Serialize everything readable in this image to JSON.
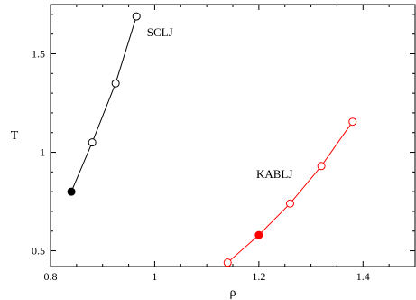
{
  "chart_data": {
    "type": "line",
    "xlabel": "ρ",
    "ylabel": "T",
    "xlim": [
      0.8,
      1.5
    ],
    "ylim": [
      0.42,
      1.75
    ],
    "x_ticks": [
      0.8,
      1.0,
      1.2,
      1.4
    ],
    "x_tick_labels": [
      "0.8",
      "1",
      "1.2",
      "1.4"
    ],
    "y_ticks": [
      0.5,
      1.0,
      1.5
    ],
    "y_tick_labels": [
      "0.5",
      "1",
      "1.5"
    ],
    "grid": false,
    "series": [
      {
        "name": "SCLJ",
        "color": "#000000",
        "marker": "open-circle",
        "points": [
          {
            "x": 0.84,
            "y": 0.8,
            "filled": true
          },
          {
            "x": 0.88,
            "y": 1.05,
            "filled": false
          },
          {
            "x": 0.925,
            "y": 1.35,
            "filled": false
          },
          {
            "x": 0.965,
            "y": 1.69,
            "filled": false
          }
        ]
      },
      {
        "name": "KABLJ",
        "color": "#ff0000",
        "marker": "open-circle",
        "points": [
          {
            "x": 1.14,
            "y": 0.44,
            "filled": false
          },
          {
            "x": 1.2,
            "y": 0.58,
            "filled": true
          },
          {
            "x": 1.26,
            "y": 0.74,
            "filled": false
          },
          {
            "x": 1.32,
            "y": 0.93,
            "filled": false
          },
          {
            "x": 1.38,
            "y": 1.155,
            "filled": false
          }
        ]
      }
    ],
    "annotations": [
      {
        "text": "SCLJ",
        "x": 0.985,
        "y": 1.59
      },
      {
        "text": "KABLJ",
        "x": 1.195,
        "y": 0.87
      }
    ]
  }
}
